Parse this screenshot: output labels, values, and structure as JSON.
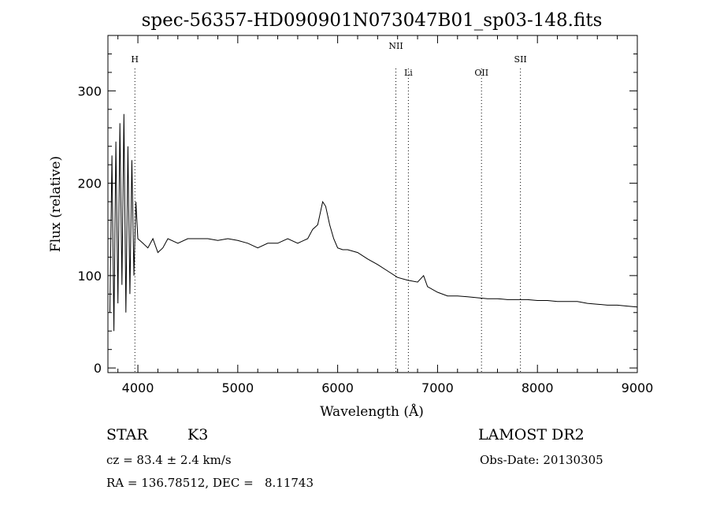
{
  "chart_data": {
    "type": "line",
    "title": "spec-56357-HD090901N073047B01_sp03-148.fits",
    "xlabel": "Wavelength (Å)",
    "ylabel": "Flux (relative)",
    "xlim": [
      3700,
      9000
    ],
    "ylim": [
      -5,
      360
    ],
    "x_ticks": [
      4000,
      5000,
      6000,
      7000,
      8000,
      9000
    ],
    "y_ticks": [
      0,
      100,
      200,
      300
    ],
    "grid": false,
    "line_color": "#000000",
    "lines": [
      {
        "label": "H",
        "wavelength": 3970
      },
      {
        "label": "NII",
        "wavelength": 6583
      },
      {
        "label": "Li",
        "wavelength": 6708
      },
      {
        "label": "OII",
        "wavelength": 7440
      },
      {
        "label": "SII",
        "wavelength": 7830
      }
    ],
    "series": [
      {
        "x": [
          3720,
          3740,
          3760,
          3780,
          3800,
          3820,
          3840,
          3860,
          3880,
          3900,
          3920,
          3940,
          3960,
          3980,
          4000,
          4050,
          4100,
          4150,
          4200,
          4250,
          4300,
          4400,
          4500,
          4600,
          4700,
          4800,
          4900,
          5000,
          5100,
          5200,
          5300,
          5400,
          5500,
          5600,
          5700,
          5750,
          5800,
          5850,
          5880,
          5920,
          5960,
          6000,
          6050,
          6100,
          6200,
          6300,
          6400,
          6500,
          6600,
          6700,
          6800,
          6860,
          6900,
          7000,
          7100,
          7200,
          7300,
          7400,
          7500,
          7600,
          7700,
          7800,
          7900,
          8000,
          8100,
          8200,
          8300,
          8400,
          8500,
          8600,
          8700,
          8800,
          8900,
          9000
        ],
        "y": [
          60,
          230,
          40,
          245,
          70,
          265,
          90,
          275,
          60,
          240,
          80,
          225,
          100,
          180,
          140,
          135,
          130,
          140,
          125,
          130,
          140,
          135,
          140,
          140,
          140,
          138,
          140,
          138,
          135,
          130,
          135,
          135,
          140,
          135,
          140,
          150,
          155,
          180,
          175,
          155,
          140,
          130,
          128,
          128,
          125,
          118,
          112,
          105,
          98,
          95,
          93,
          100,
          88,
          82,
          78,
          78,
          77,
          76,
          75,
          75,
          74,
          74,
          74,
          73,
          73,
          72,
          72,
          72,
          70,
          69,
          68,
          68,
          67,
          66
        ]
      }
    ]
  },
  "info": {
    "object_class": "STAR",
    "subclass": "K3",
    "survey": "LAMOST DR2",
    "redshift": "cz = 83.4 ± 2.4 km/s",
    "obs_date": "Obs-Date: 20130305",
    "coords": "RA = 136.78512, DEC =   8.11743"
  }
}
